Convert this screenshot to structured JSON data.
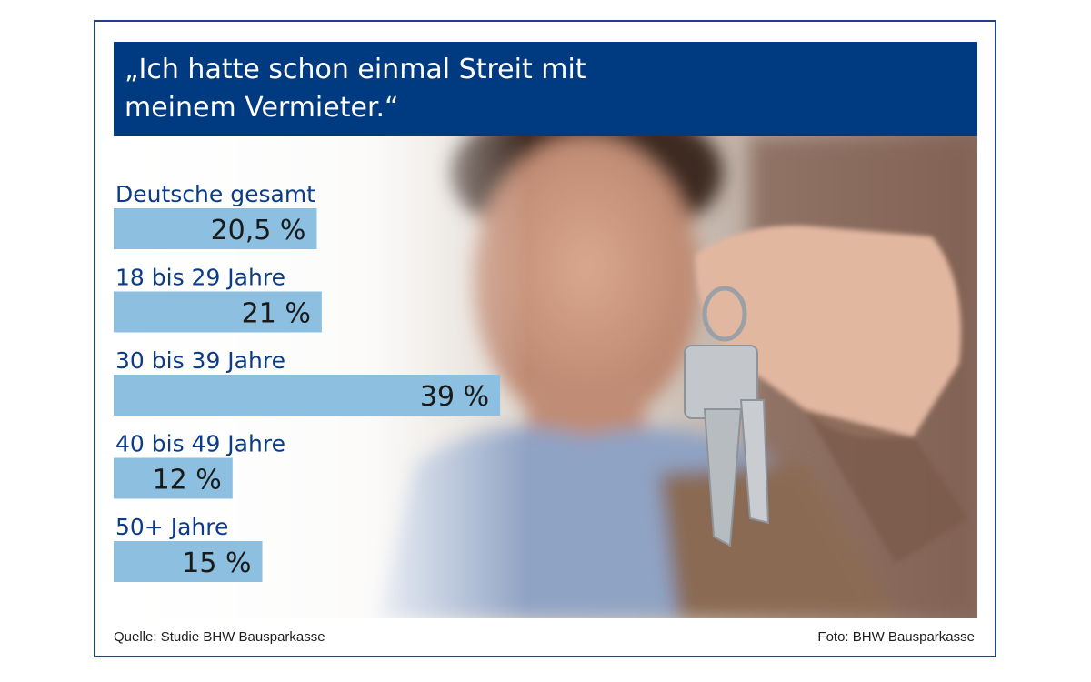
{
  "header": {
    "title_line1": "„Ich hatte schon einmal Streit mit",
    "title_line2": "meinem Vermieter.“"
  },
  "colors": {
    "title_bg": "#003a80",
    "bar": "#8cbfe0",
    "label": "#0d3c86",
    "value": "#1a1a1a",
    "frame": "#1c3f8c"
  },
  "photo": {
    "description_icon": "man-holding-keys-photo"
  },
  "chart_data": {
    "type": "bar",
    "orientation": "horizontal",
    "categories": [
      "Deutsche gesamt",
      "18 bis 29 Jahre",
      "30 bis 39 Jahre",
      "40 bis 49 Jahre",
      "50+ Jahre"
    ],
    "values": [
      20.5,
      21,
      39,
      12,
      15
    ],
    "value_labels": [
      "20,5 %",
      "21 %",
      "39 %",
      "12 %",
      "15 %"
    ],
    "unit": "%"
  },
  "footer": {
    "source": "Quelle: Studie BHW Bausparkasse",
    "photo_credit": "Foto: BHW Bausparkasse"
  }
}
